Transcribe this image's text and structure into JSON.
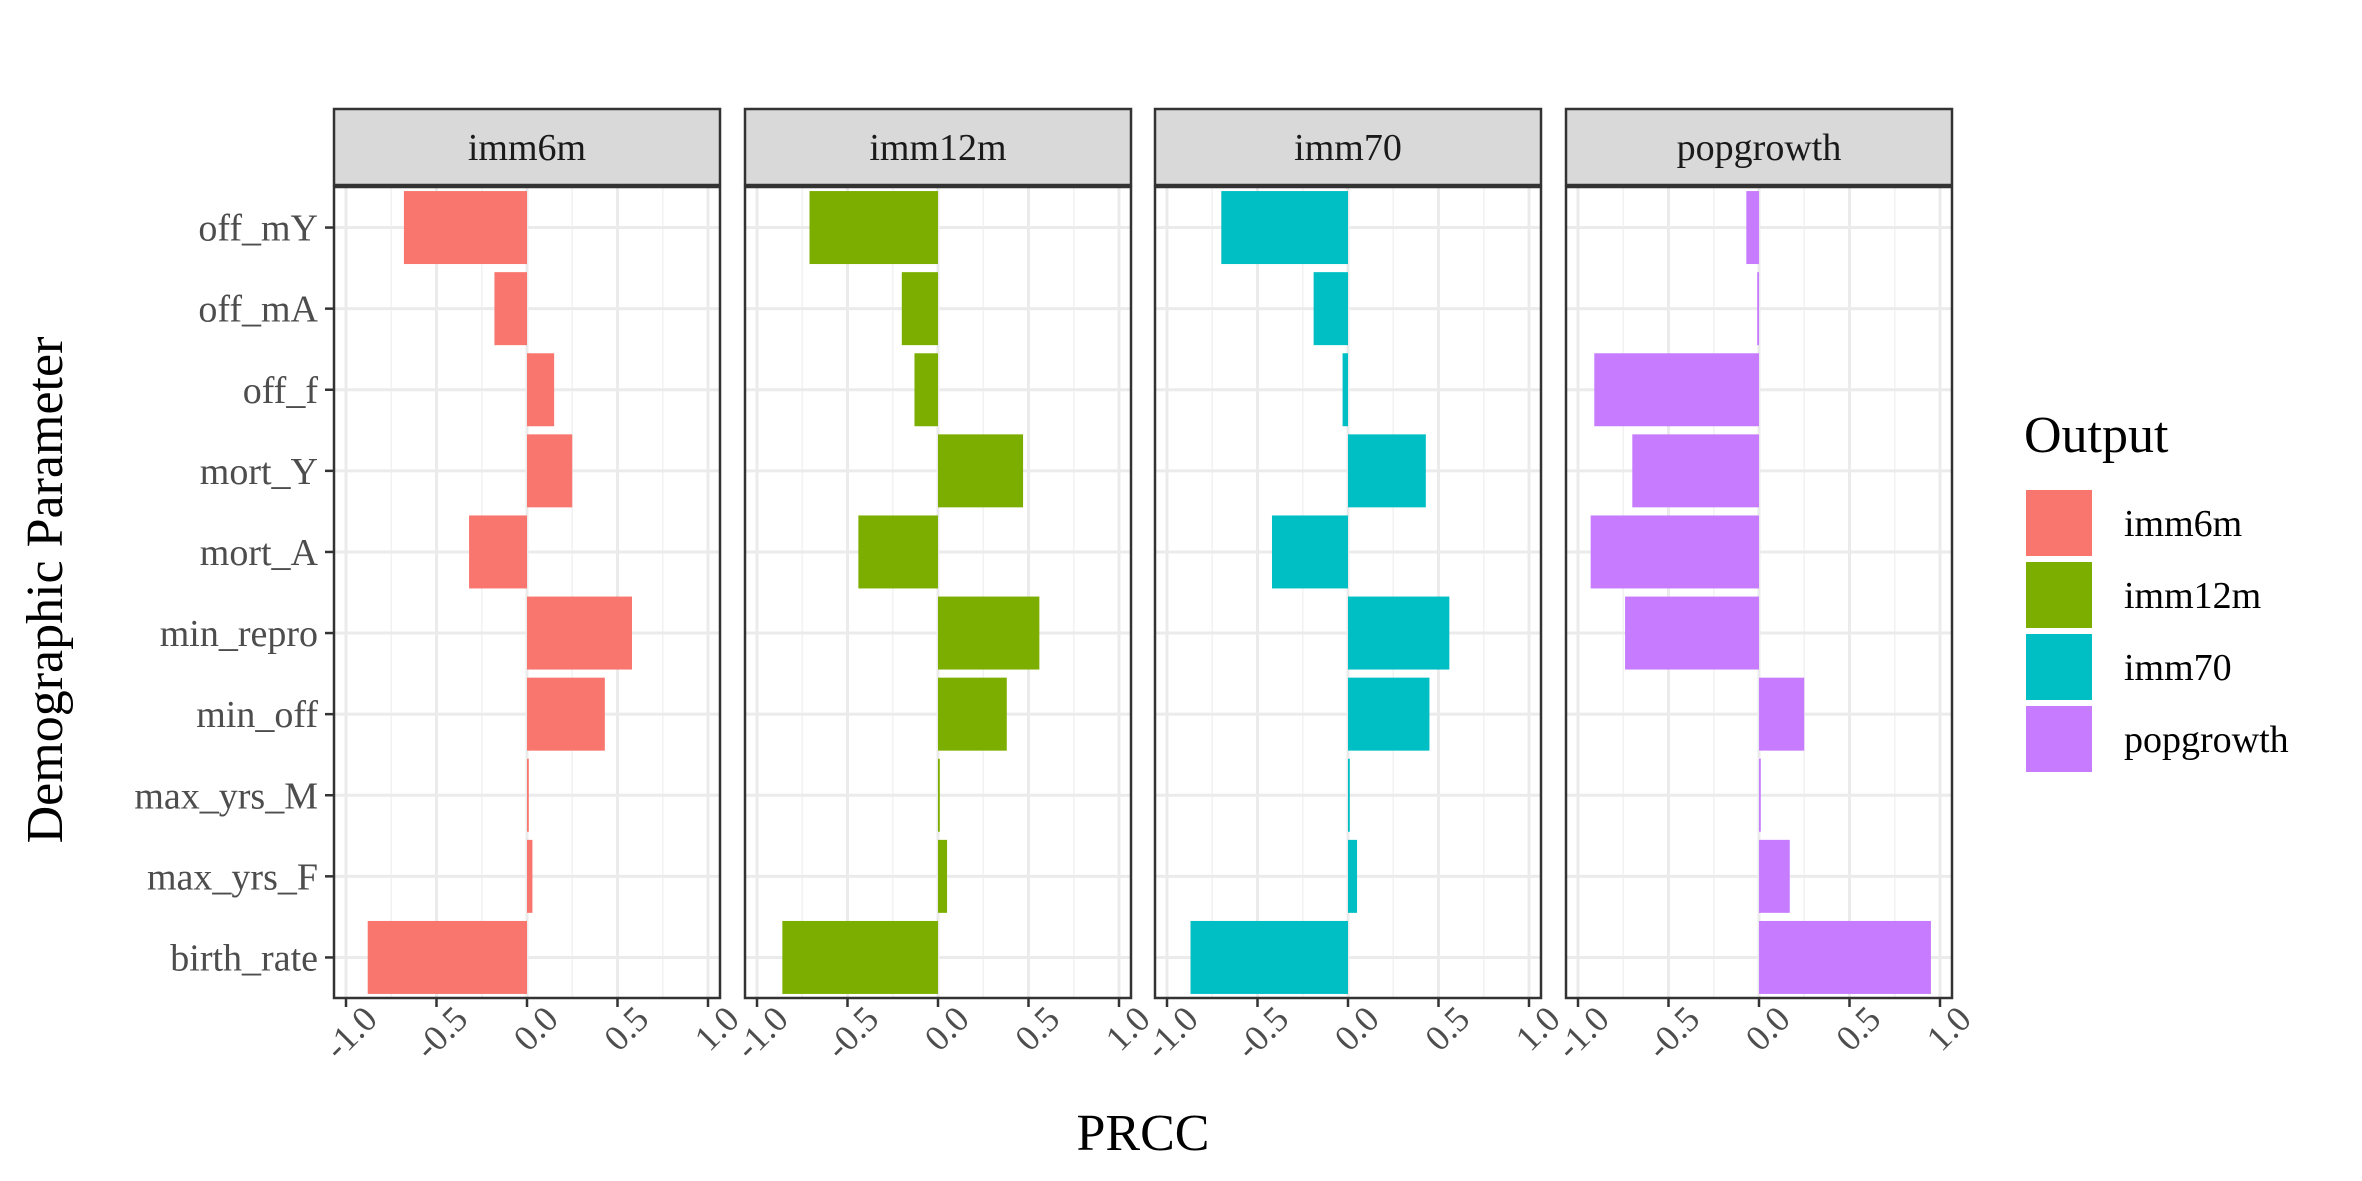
{
  "chart_data": {
    "type": "bar",
    "orientation": "horizontal",
    "xlabel": "PRCC",
    "ylabel": "Demographic Parameter",
    "xlim": [
      -1.0,
      1.0
    ],
    "x_ticks": [
      "-1.0",
      "-0.5",
      "0.0",
      "0.5",
      "1.0"
    ],
    "x_tick_values": [
      -1.0,
      -0.5,
      0.0,
      0.5,
      1.0
    ],
    "grid": true,
    "categories": [
      "off_mY",
      "off_mA",
      "off_f",
      "mort_Y",
      "mort_A",
      "min_repro",
      "min_off",
      "max_yrs_M",
      "max_yrs_F",
      "birth_rate"
    ],
    "legend": {
      "title": "Output",
      "placement": "right",
      "entries": [
        "imm6m",
        "imm12m",
        "imm70",
        "popgrowth"
      ]
    },
    "series": [
      {
        "name": "imm6m",
        "color": "#F8766D",
        "values": [
          -0.68,
          -0.18,
          0.15,
          0.25,
          -0.32,
          0.58,
          0.43,
          0.01,
          0.03,
          -0.88
        ]
      },
      {
        "name": "imm12m",
        "color": "#7CAE00",
        "values": [
          -0.71,
          -0.2,
          -0.13,
          0.47,
          -0.44,
          0.56,
          0.38,
          0.01,
          0.05,
          -0.86
        ]
      },
      {
        "name": "imm70",
        "color": "#00BFC4",
        "values": [
          -0.7,
          -0.19,
          -0.03,
          0.43,
          -0.42,
          0.56,
          0.45,
          0.01,
          0.05,
          -0.87
        ]
      },
      {
        "name": "popgrowth",
        "color": "#C77CFF",
        "values": [
          -0.07,
          -0.01,
          -0.91,
          -0.7,
          -0.93,
          -0.74,
          0.25,
          0.01,
          0.17,
          0.95
        ]
      }
    ]
  }
}
